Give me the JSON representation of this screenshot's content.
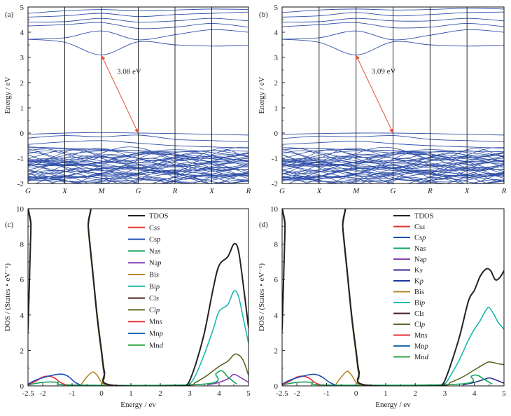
{
  "chart_data": [
    {
      "panel": "(a)",
      "type": "line",
      "ylabel": "Energy / eV",
      "ylim": [
        -2,
        5
      ],
      "yticks": [
        -2,
        -1,
        0,
        1,
        2,
        3,
        4,
        5
      ],
      "kpath": [
        "G",
        "X",
        "M",
        "G",
        "R",
        "X",
        "R"
      ],
      "annotation": {
        "text": "3.08 eV",
        "from": {
          "k": "M",
          "energy": 3.08
        },
        "to": {
          "k": "G",
          "energy": 0.0
        }
      },
      "conduction_bands": [
        [
          3.72,
          3.6,
          3.1,
          3.62,
          3.5,
          3.45,
          3.48
        ],
        [
          3.72,
          3.78,
          4.05,
          3.7,
          3.9,
          4.1,
          4.0
        ],
        [
          4.25,
          4.3,
          4.38,
          4.15,
          4.2,
          4.35,
          4.2
        ],
        [
          4.4,
          4.42,
          4.55,
          4.4,
          4.45,
          4.55,
          4.45
        ],
        [
          4.6,
          4.65,
          4.75,
          4.62,
          4.7,
          4.75,
          4.8
        ],
        [
          4.75,
          4.85,
          4.9,
          4.85,
          4.88,
          4.92,
          4.9
        ]
      ],
      "valence_top": [
        [
          -0.05,
          0.0,
          0.02,
          0.0,
          -0.02,
          -0.05,
          -0.08
        ],
        [
          -0.2,
          -0.1,
          -0.15,
          -0.08,
          -0.25,
          -0.3,
          -0.35
        ],
        [
          -0.45,
          -0.35,
          -0.3,
          -0.4,
          -0.5,
          -0.55,
          -0.6
        ],
        [
          -0.55,
          -0.6,
          -0.65,
          -0.7,
          -0.75,
          -0.7,
          -0.72
        ]
      ]
    },
    {
      "panel": "(b)",
      "type": "line",
      "ylabel": "Energy / eV",
      "ylim": [
        -2,
        5
      ],
      "yticks": [
        -2,
        -1,
        0,
        1,
        2,
        3,
        4,
        5
      ],
      "kpath": [
        "G",
        "X",
        "M",
        "G",
        "R",
        "X",
        "R"
      ],
      "annotation": {
        "text": "3.09 eV",
        "from": {
          "k": "M",
          "energy": 3.09
        },
        "to": {
          "k": "G",
          "energy": 0.0
        }
      },
      "conduction_bands": [
        [
          3.72,
          3.6,
          3.1,
          3.62,
          3.5,
          3.45,
          3.48
        ],
        [
          3.72,
          3.78,
          4.05,
          3.7,
          3.88,
          4.1,
          4.0
        ],
        [
          4.22,
          4.3,
          4.38,
          4.18,
          4.2,
          4.35,
          4.22
        ],
        [
          4.4,
          4.42,
          4.55,
          4.45,
          4.45,
          4.55,
          4.45
        ],
        [
          4.6,
          4.65,
          4.78,
          4.65,
          4.7,
          4.78,
          4.8
        ],
        [
          4.78,
          4.88,
          4.92,
          4.88,
          4.9,
          4.95,
          4.92
        ]
      ],
      "valence_top": [
        [
          -0.05,
          -0.02,
          0.0,
          0.0,
          -0.02,
          -0.05,
          -0.08
        ],
        [
          -0.22,
          -0.12,
          -0.15,
          -0.1,
          -0.25,
          -0.3,
          -0.35
        ],
        [
          -0.45,
          -0.38,
          -0.32,
          -0.42,
          -0.5,
          -0.55,
          -0.6
        ],
        [
          -0.58,
          -0.62,
          -0.66,
          -0.7,
          -0.75,
          -0.72,
          -0.74
        ]
      ]
    },
    {
      "panel": "(c)",
      "type": "line",
      "xlabel": "Energy / ev",
      "ylabel": "DOS / (States・eV⁻¹)",
      "xlim": [
        -2.5,
        5
      ],
      "ylim": [
        0,
        10
      ],
      "xticks": [
        -2.5,
        -2,
        -1,
        0,
        1,
        2,
        3,
        4,
        5
      ],
      "yticks": [
        0,
        2,
        4,
        6,
        8,
        10
      ],
      "legend": [
        {
          "name": "TDOS",
          "color": "#222222",
          "label": [
            "TDOS",
            ""
          ]
        },
        {
          "name": "Cs s",
          "color": "#e8312f",
          "label": [
            "Cs",
            "s"
          ]
        },
        {
          "name": "Cs p",
          "color": "#1c4db3",
          "label": [
            "Cs",
            "p"
          ]
        },
        {
          "name": "Na s",
          "color": "#13a35a",
          "label": [
            "Na",
            "s"
          ]
        },
        {
          "name": "Na p",
          "color": "#8a3fb5",
          "label": [
            "Na",
            "p"
          ]
        },
        {
          "name": "Bi s",
          "color": "#b8862a",
          "label": [
            "Bi",
            "s"
          ]
        },
        {
          "name": "Bi p",
          "color": "#17b8b0",
          "label": [
            "Bi",
            "p"
          ]
        },
        {
          "name": "Cl s",
          "color": "#4a2222",
          "label": [
            "Cl",
            "s"
          ]
        },
        {
          "name": "Cl p",
          "color": "#5a6a24",
          "label": [
            "Cl",
            "p"
          ]
        },
        {
          "name": "Mn s",
          "color": "#e8312f",
          "label": [
            "Mn",
            "s"
          ]
        },
        {
          "name": "Mn p",
          "color": "#1c6db3",
          "label": [
            "Mn",
            "p"
          ]
        },
        {
          "name": "Mn d",
          "color": "#2aa840",
          "label": [
            "Mn",
            "d"
          ]
        }
      ],
      "series": [
        {
          "name": "TDOS",
          "color": "#222222",
          "x": [
            -2.5,
            -2.45,
            -2.4,
            -2.35,
            -0.5,
            -0.45,
            -0.3,
            -0.15,
            0,
            0.1,
            0.3,
            2.8,
            2.9,
            3.0,
            3.2,
            3.5,
            3.8,
            4.0,
            4.3,
            4.5,
            4.65,
            4.8,
            5.0
          ],
          "y": [
            3.2,
            6.0,
            9.0,
            10.5,
            10.5,
            9.0,
            6.5,
            4.0,
            2.0,
            0.8,
            0.05,
            0.0,
            0.05,
            0.3,
            1.2,
            3.0,
            5.5,
            6.8,
            7.3,
            8.0,
            7.7,
            6.0,
            3.3
          ]
        },
        {
          "name": "Bi p",
          "color": "#17b8b0",
          "x": [
            2.8,
            3.0,
            3.2,
            3.5,
            3.8,
            4.0,
            4.3,
            4.5,
            4.65,
            4.8,
            5.0
          ],
          "y": [
            0.0,
            0.1,
            0.6,
            1.8,
            3.2,
            4.2,
            4.6,
            5.35,
            5.1,
            4.0,
            2.4
          ]
        },
        {
          "name": "Cl p",
          "color": "#5a6a24",
          "x": [
            -2.5,
            -2.45,
            -2.4,
            -2.35,
            -0.5,
            -0.45,
            -0.3,
            -0.15,
            0,
            0.1,
            0.3,
            2.8,
            3.2,
            3.6,
            4.0,
            4.3,
            4.55,
            4.8,
            5.0
          ],
          "y": [
            3.0,
            5.8,
            8.8,
            10.5,
            10.5,
            8.8,
            6.3,
            3.8,
            1.8,
            0.6,
            0.05,
            0.0,
            0.2,
            0.6,
            1.1,
            1.4,
            1.8,
            1.5,
            0.6
          ]
        },
        {
          "name": "Bi s",
          "color": "#b8862a",
          "x": [
            -0.7,
            -0.5,
            -0.3,
            -0.15,
            0,
            0.2
          ],
          "y": [
            0.05,
            0.5,
            0.78,
            0.6,
            0.2,
            0.0
          ]
        },
        {
          "name": "Cs p",
          "color": "#1c4db3",
          "x": [
            -2.5,
            -2.2,
            -1.8,
            -1.5,
            -1.3,
            -1.1,
            -0.9,
            -0.7
          ],
          "y": [
            0.1,
            0.35,
            0.55,
            0.65,
            0.65,
            0.5,
            0.2,
            0.05
          ]
        },
        {
          "name": "Cs s",
          "color": "#e8312f",
          "x": [
            -2.5,
            -2.2,
            -2.0,
            -1.8,
            -1.6,
            -1.4,
            -1.2
          ],
          "y": [
            0.05,
            0.3,
            0.5,
            0.55,
            0.45,
            0.2,
            0.05
          ]
        },
        {
          "name": "Na s",
          "color": "#13a35a",
          "x": [
            -2.5,
            -2.0,
            -1.5,
            -1.0,
            3.5,
            3.9,
            4.1,
            4.3,
            4.6
          ],
          "y": [
            0.05,
            0.2,
            0.2,
            0.05,
            0.1,
            0.7,
            0.85,
            0.5,
            0.1
          ]
        },
        {
          "name": "Na p",
          "color": "#8a3fb5",
          "x": [
            3.6,
            4.0,
            4.3,
            4.5,
            4.7,
            5.0
          ],
          "y": [
            0.05,
            0.2,
            0.4,
            0.65,
            0.5,
            0.2
          ]
        }
      ]
    },
    {
      "panel": "(d)",
      "type": "line",
      "xlabel": "Energy / ev",
      "ylabel": "DOS / (States・eV⁻¹)",
      "xlim": [
        -2.5,
        5
      ],
      "ylim": [
        0,
        10
      ],
      "xticks": [
        -2.5,
        -2,
        -1,
        0,
        1,
        2,
        3,
        4,
        5
      ],
      "yticks": [
        0,
        2,
        4,
        6,
        8,
        10
      ],
      "legend": [
        {
          "name": "TDOS",
          "color": "#222222",
          "label": [
            "TDOS",
            ""
          ]
        },
        {
          "name": "Cs s",
          "color": "#e8312f",
          "label": [
            "Cs",
            "s"
          ]
        },
        {
          "name": "Cs p",
          "color": "#1c4db3",
          "label": [
            "Cs",
            "p"
          ]
        },
        {
          "name": "Na s",
          "color": "#13a35a",
          "label": [
            "Na",
            "s"
          ]
        },
        {
          "name": "Na p",
          "color": "#8a3fb5",
          "label": [
            "Na",
            "p"
          ]
        },
        {
          "name": "K s",
          "color": "#2b2b8f",
          "label": [
            "K",
            "s"
          ]
        },
        {
          "name": "K p",
          "color": "#1a3a9a",
          "label": [
            "K",
            "p"
          ]
        },
        {
          "name": "Bi s",
          "color": "#b8862a",
          "label": [
            "Bi",
            "s"
          ]
        },
        {
          "name": "Bi p",
          "color": "#17b8b0",
          "label": [
            "Bi",
            "p"
          ]
        },
        {
          "name": "Cl s",
          "color": "#4a2222",
          "label": [
            "Cl",
            "s"
          ]
        },
        {
          "name": "Cl p",
          "color": "#5a6a24",
          "label": [
            "Cl",
            "p"
          ]
        },
        {
          "name": "Mn s",
          "color": "#e8312f",
          "label": [
            "Mn",
            "s"
          ]
        },
        {
          "name": "Mn p",
          "color": "#1c6db3",
          "label": [
            "Mn",
            "p"
          ]
        },
        {
          "name": "Mn d",
          "color": "#2aa840",
          "label": [
            "Mn",
            "d"
          ]
        }
      ],
      "series": [
        {
          "name": "TDOS",
          "color": "#222222",
          "x": [
            -2.5,
            -2.45,
            -2.4,
            -2.35,
            -0.5,
            -0.45,
            -0.3,
            -0.15,
            0,
            0.1,
            0.3,
            2.8,
            2.9,
            3.0,
            3.2,
            3.5,
            3.8,
            4.0,
            4.2,
            4.4,
            4.55,
            4.7,
            4.85,
            5.0
          ],
          "y": [
            3.2,
            6.0,
            9.0,
            10.5,
            10.5,
            9.0,
            6.5,
            4.0,
            2.0,
            0.8,
            0.05,
            0.0,
            0.05,
            0.3,
            1.2,
            2.8,
            4.8,
            5.4,
            6.2,
            6.6,
            6.5,
            6.0,
            6.1,
            6.5
          ]
        },
        {
          "name": "Bi p",
          "color": "#17b8b0",
          "x": [
            2.8,
            3.0,
            3.2,
            3.5,
            3.8,
            4.0,
            4.2,
            4.45,
            4.6,
            4.8,
            5.0
          ],
          "y": [
            0.0,
            0.1,
            0.6,
            1.5,
            2.6,
            3.2,
            3.7,
            4.4,
            4.2,
            3.6,
            3.2
          ]
        },
        {
          "name": "Cl p",
          "color": "#5a6a24",
          "x": [
            -2.5,
            -2.45,
            -2.4,
            -2.35,
            -0.5,
            -0.45,
            -0.3,
            -0.15,
            0,
            0.1,
            0.3,
            2.8,
            3.2,
            3.6,
            4.0,
            4.3,
            4.5,
            4.8,
            5.0
          ],
          "y": [
            3.0,
            5.8,
            8.8,
            10.5,
            10.5,
            8.8,
            6.3,
            3.8,
            1.8,
            0.6,
            0.05,
            0.0,
            0.2,
            0.5,
            0.9,
            1.2,
            1.35,
            1.25,
            1.2
          ]
        },
        {
          "name": "Bi s",
          "color": "#b8862a",
          "x": [
            -0.7,
            -0.5,
            -0.3,
            -0.15,
            0,
            0.2
          ],
          "y": [
            0.05,
            0.5,
            0.82,
            0.6,
            0.2,
            0.0
          ]
        },
        {
          "name": "Cs p",
          "color": "#1c4db3",
          "x": [
            -2.5,
            -2.2,
            -1.8,
            -1.5,
            -1.3,
            -1.1,
            -0.9,
            -0.7
          ],
          "y": [
            0.1,
            0.35,
            0.55,
            0.65,
            0.62,
            0.45,
            0.2,
            0.05
          ]
        },
        {
          "name": "Cs s",
          "color": "#e8312f",
          "x": [
            -2.5,
            -2.2,
            -2.0,
            -1.8,
            -1.6,
            -1.4,
            -1.2
          ],
          "y": [
            0.05,
            0.3,
            0.5,
            0.55,
            0.45,
            0.2,
            0.05
          ]
        },
        {
          "name": "Na s",
          "color": "#13a35a",
          "x": [
            -2.5,
            -2.0,
            -1.5,
            -1.0,
            3.5,
            3.9,
            4.1,
            4.3,
            4.6
          ],
          "y": [
            0.05,
            0.2,
            0.2,
            0.05,
            0.1,
            0.55,
            0.6,
            0.4,
            0.1
          ]
        },
        {
          "name": "K s",
          "color": "#2b2b8f",
          "x": [
            3.6,
            4.0,
            4.3,
            4.5,
            4.7,
            5.0
          ],
          "y": [
            0.05,
            0.2,
            0.35,
            0.45,
            0.35,
            0.15
          ]
        }
      ]
    }
  ]
}
